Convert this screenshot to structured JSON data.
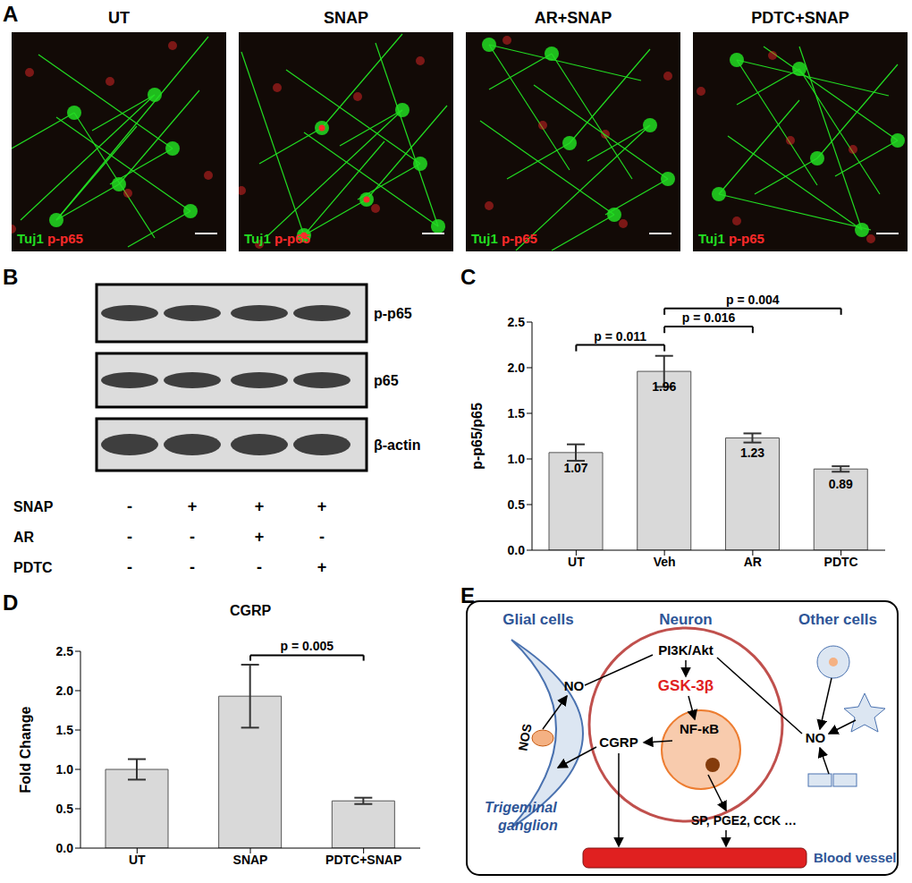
{
  "panel_labels": [
    "A",
    "B",
    "C",
    "D",
    "E"
  ],
  "panel_a": {
    "images": [
      {
        "title": "UT"
      },
      {
        "title": "SNAP"
      },
      {
        "title": "AR+SNAP"
      },
      {
        "title": "PDTC+SNAP"
      }
    ],
    "stains": [
      {
        "name": "Tuj1",
        "color": "#22dd22"
      },
      {
        "name": "p-p65",
        "color": "#ff2a2a"
      }
    ]
  },
  "panel_b": {
    "bands": [
      "p-p65",
      "p65",
      "β-actin"
    ],
    "treatments": [
      {
        "name": "SNAP",
        "signs": [
          "-",
          "+",
          "+",
          "+"
        ]
      },
      {
        "name": "AR",
        "signs": [
          "-",
          "-",
          "+",
          "-"
        ]
      },
      {
        "name": "PDTC",
        "signs": [
          "-",
          "-",
          "-",
          "+"
        ]
      }
    ]
  },
  "chart_data": [
    {
      "type": "bar",
      "categories": [
        "UT",
        "Veh",
        "AR",
        "PDTC"
      ],
      "values": [
        1.07,
        1.96,
        1.23,
        0.89
      ],
      "errors": [
        0.09,
        0.17,
        0.05,
        0.03
      ],
      "data_labels": true,
      "color": "#d9d9d9",
      "y_label": "p-p65/p65",
      "ylim": [
        0,
        2.5
      ],
      "yticks": [
        {
          "value": 0,
          "label": "0.0"
        },
        0.5,
        {
          "value": 1,
          "label": "1.0"
        },
        1.5,
        {
          "value": 2,
          "label": "2.0"
        },
        2.5
      ],
      "annotations": [
        {
          "from": "UT",
          "to": "Veh",
          "label": "p = 0.011"
        },
        {
          "from": "Veh",
          "to": "AR",
          "label": "p = 0.016"
        },
        {
          "from": "Veh",
          "to": "PDTC",
          "label": "p = 0.004"
        }
      ]
    },
    {
      "type": "bar",
      "title": "CGRP",
      "categories": [
        "UT",
        "SNAP",
        "PDTC+SNAP"
      ],
      "values": [
        1.0,
        1.93,
        0.6
      ],
      "errors": [
        0.13,
        0.4,
        0.04
      ],
      "color": "#d9d9d9",
      "y_label": "Fold Change",
      "ylim": [
        0,
        2.5
      ],
      "yticks": [
        {
          "value": 0,
          "label": "0.0"
        },
        0.5,
        {
          "value": 1,
          "label": "1.0"
        },
        1.5,
        {
          "value": 2,
          "label": "2.0"
        },
        2.5
      ],
      "annotations": [
        {
          "from": "SNAP",
          "to": "PDTC+SNAP",
          "label": "p = 0.005"
        }
      ]
    }
  ],
  "panel_e": {
    "cells": {
      "glial": "Glial cells",
      "neuron": "Neuron",
      "other": "Other cells"
    },
    "nodes": {
      "nos": "NOS",
      "no_glial": "NO",
      "pi3k": "PI3K/Akt",
      "gsk": "GSK-3β",
      "nfkb": "NF-κB",
      "cgrp": "CGRP",
      "no_other": "NO",
      "mediators": "SP, PGE2, CCK …"
    },
    "tissue": [
      "Trigeminal",
      "ganglion"
    ],
    "vessel": "Blood vessel"
  }
}
